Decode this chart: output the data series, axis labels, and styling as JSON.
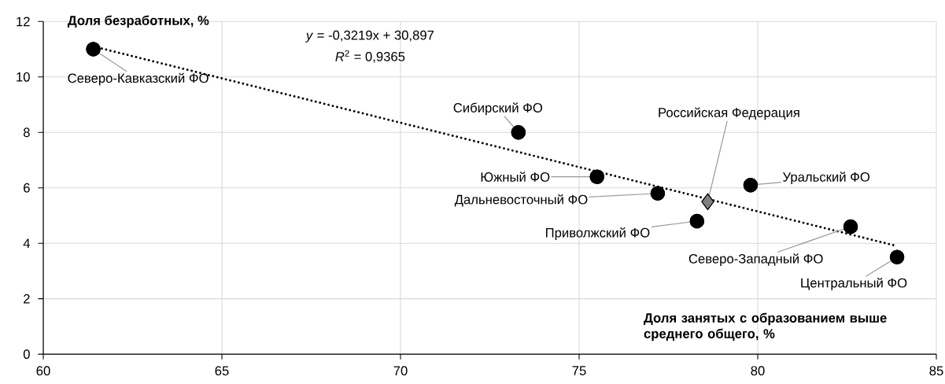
{
  "chart_data": {
    "type": "scatter",
    "xlabel": "Доля занятых с образованием выше среднего общего, %",
    "ylabel": "Доля безработных, %",
    "annotations": [
      "*y* = -0,3219x + 30,897",
      "*R*$^{2}$ = 0,9365"
    ],
    "xlim": [
      60,
      85
    ],
    "xticks": [
      60,
      65,
      70,
      75,
      80,
      85
    ],
    "ylim": [
      0,
      12
    ],
    "yticks": [
      0,
      2,
      4,
      6,
      8,
      10,
      12
    ],
    "grid": true,
    "marker": "circle",
    "series": [
      {
        "name": "Северо-Кавказский ФО",
        "color": "#000000",
        "x": [
          61.4
        ],
        "values": [
          11.0
        ]
      },
      {
        "name": "Сибирский ФО",
        "color": "#000000",
        "x": [
          73.3
        ],
        "values": [
          8.0
        ]
      },
      {
        "name": "Южный ФО",
        "color": "#000000",
        "x": [
          75.5
        ],
        "values": [
          6.4
        ]
      },
      {
        "name": "Дальневосточный ФО",
        "color": "#000000",
        "x": [
          77.2
        ],
        "values": [
          5.8
        ]
      },
      {
        "name": "Российская Федерация",
        "color": "#808080",
        "marker": "diamond",
        "x": [
          78.6
        ],
        "values": [
          5.5
        ]
      },
      {
        "name": "Приволжский ФО",
        "color": "#000000",
        "x": [
          78.3
        ],
        "values": [
          4.8
        ]
      },
      {
        "name": "Уральский ФО",
        "color": "#000000",
        "x": [
          79.8
        ],
        "values": [
          6.1
        ]
      },
      {
        "name": "Северо-Западный ФО",
        "color": "#000000",
        "x": [
          82.6
        ],
        "values": [
          4.6
        ]
      },
      {
        "name": "Центральный ФО",
        "color": "#000000",
        "x": [
          83.9
        ],
        "values": [
          3.5
        ]
      },
      {
        "type": "line",
        "color": "#000000",
        "marker": "none",
        "line_style": "dotted",
        "x": [
          61.4,
          83.9
        ],
        "values": [
          11.1,
          3.9
        ]
      }
    ]
  }
}
